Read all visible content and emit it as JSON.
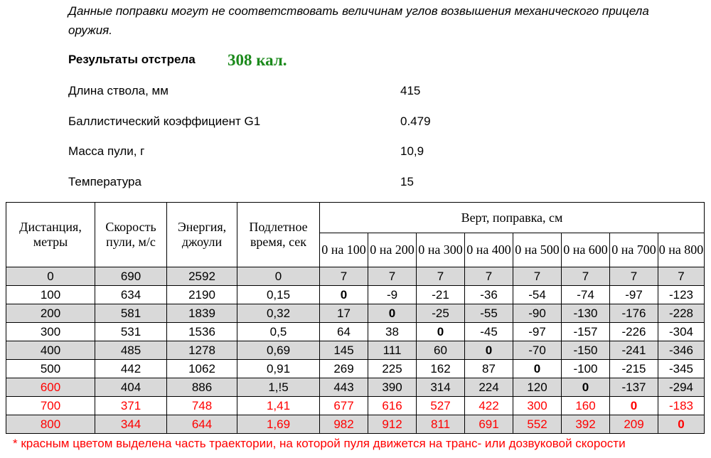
{
  "note": "Данные поправки могут не соответствовать величинам углов возвышения механического прицела оружия.",
  "results_title": "Результаты отстрела",
  "caliber": "308 кал.",
  "params": [
    {
      "label": "Длина ствола, мм",
      "value": "415"
    },
    {
      "label": "Баллистический коэффициент G1",
      "value": "0.479"
    },
    {
      "label": "Масса пули, г",
      "value": "10,9"
    },
    {
      "label": "Температура",
      "value": "15"
    }
  ],
  "table": {
    "headers": {
      "distance": "Дистанция, метры",
      "speed": "Скорость пули, м/с",
      "energy": "Энергия, джоули",
      "flight_time": "Подлетное время, сек",
      "correction_group": "Верт, поправка, см",
      "zeros": [
        "0 на 100",
        "0 на 200",
        "0 на 300",
        "0 на 400",
        "0 на 500",
        "0 на 600",
        "0 на 700",
        "0 на 800"
      ]
    },
    "rows": [
      {
        "distance": "0",
        "speed": "690",
        "energy": "2592",
        "time": "0",
        "corrections": [
          "7",
          "7",
          "7",
          "7",
          "7",
          "7",
          "7",
          "7"
        ],
        "zero_col": -1,
        "red": [],
        "shaded": true
      },
      {
        "distance": "100",
        "speed": "634",
        "energy": "2190",
        "time": "0,15",
        "corrections": [
          "0",
          "-9",
          "-21",
          "-36",
          "-54",
          "-74",
          "-97",
          "-123"
        ],
        "zero_col": 0,
        "red": [],
        "shaded": false
      },
      {
        "distance": "200",
        "speed": "581",
        "energy": "1839",
        "time": "0,32",
        "corrections": [
          "17",
          "0",
          "-25",
          "-55",
          "-90",
          "-130",
          "-176",
          "-228"
        ],
        "zero_col": 1,
        "red": [],
        "shaded": true
      },
      {
        "distance": "300",
        "speed": "531",
        "energy": "1536",
        "time": "0,5",
        "corrections": [
          "64",
          "38",
          "0",
          "-45",
          "-97",
          "-157",
          "-226",
          "-304"
        ],
        "zero_col": 2,
        "red": [],
        "shaded": false
      },
      {
        "distance": "400",
        "speed": "485",
        "energy": "1278",
        "time": "0,69",
        "corrections": [
          "145",
          "111",
          "60",
          "0",
          "-70",
          "-150",
          "-241",
          "-346"
        ],
        "zero_col": 3,
        "red": [],
        "shaded": true
      },
      {
        "distance": "500",
        "speed": "442",
        "energy": "1062",
        "time": "0,91",
        "corrections": [
          "269",
          "225",
          "162",
          "87",
          "0",
          "-100",
          "-215",
          "-345"
        ],
        "zero_col": 4,
        "red": [],
        "shaded": false
      },
      {
        "distance": "600",
        "speed": "404",
        "energy": "886",
        "time": "1,!5",
        "corrections": [
          "443",
          "390",
          "314",
          "224",
          "120",
          "0",
          "-137",
          "-294"
        ],
        "zero_col": 5,
        "red": [
          "distance"
        ],
        "shaded": true
      },
      {
        "distance": "700",
        "speed": "371",
        "energy": "748",
        "time": "1,41",
        "corrections": [
          "677",
          "616",
          "527",
          "422",
          "300",
          "160",
          "0",
          "-183"
        ],
        "zero_col": 6,
        "red": [
          "distance",
          "speed",
          "energy",
          "time",
          "c0",
          "c1",
          "c2",
          "c3",
          "c4",
          "c5",
          "c6",
          "c7"
        ],
        "shaded": false
      },
      {
        "distance": "800",
        "speed": "344",
        "energy": "644",
        "time": "1,69",
        "corrections": [
          "982",
          "912",
          "811",
          "691",
          "552",
          "392",
          "209",
          "0"
        ],
        "zero_col": 7,
        "red": [
          "distance",
          "speed",
          "energy",
          "time",
          "c0",
          "c1",
          "c2",
          "c3",
          "c4",
          "c5",
          "c6",
          "c7"
        ],
        "shaded": true
      }
    ]
  },
  "footnote": "* красным цветом выделена часть траектории, на которой пуля движется на транс- или дозвуковой скорости",
  "colors": {
    "caliber": "#1c8a1c",
    "red_text": "#ff0000",
    "shaded_row": "#d9d9d9"
  }
}
